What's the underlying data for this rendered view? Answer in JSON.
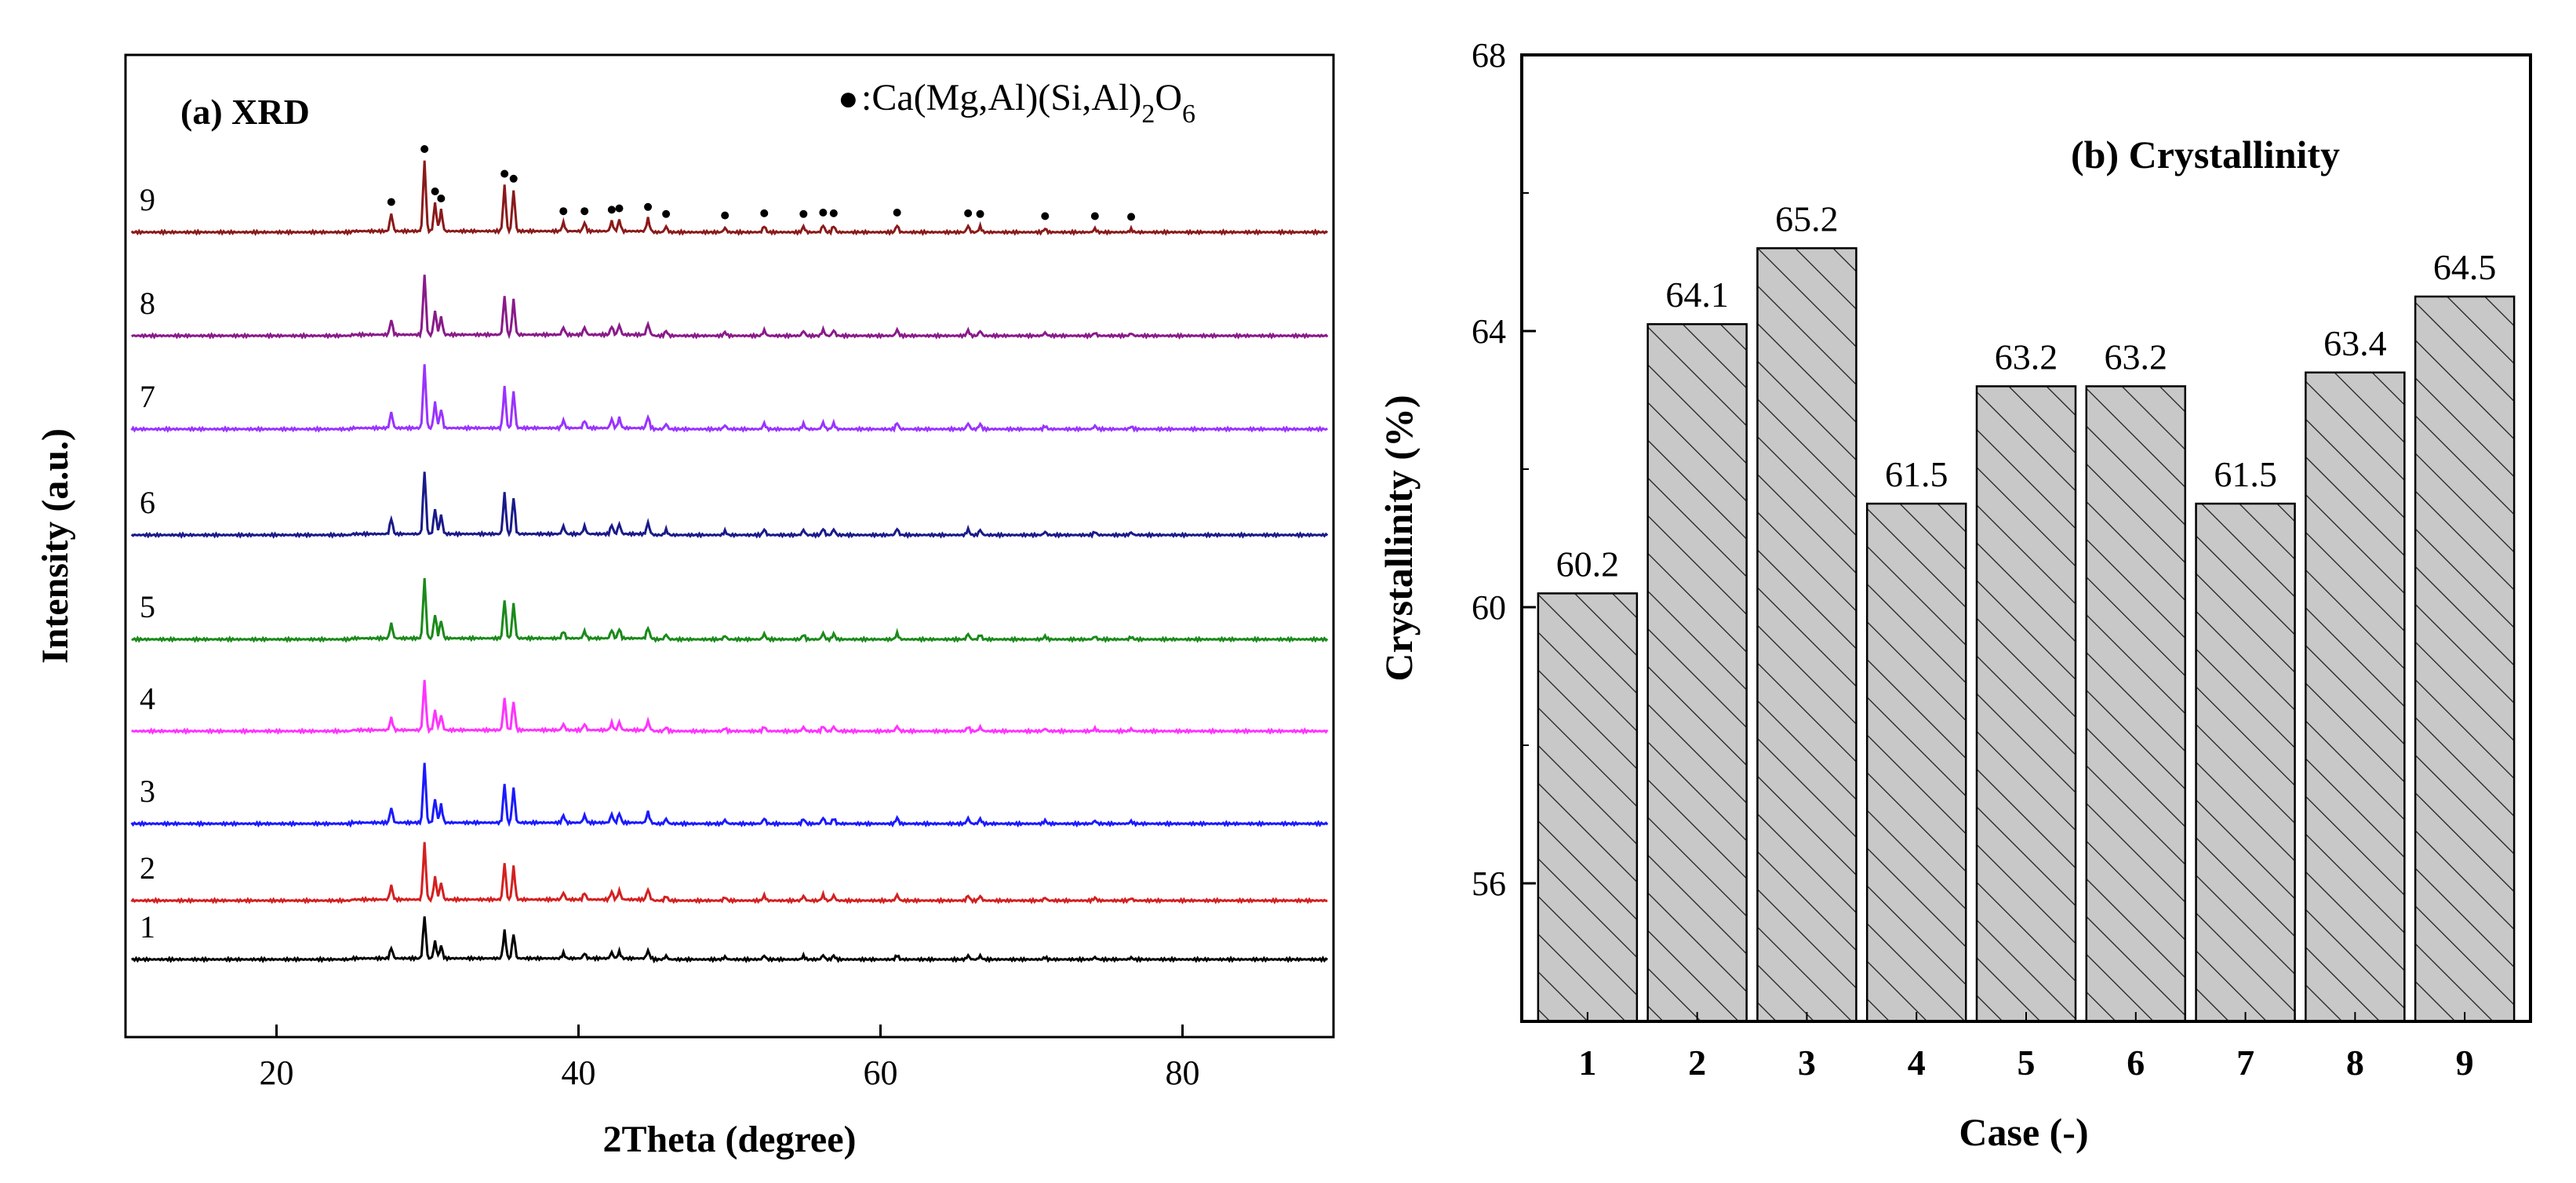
{
  "chart_data": [
    {
      "type": "line",
      "title": "(a) XRD",
      "xlabel": "2Theta (degree)",
      "ylabel": "Intensity (a.u.)",
      "xlim": [
        10,
        90
      ],
      "xticks": [
        20,
        40,
        60,
        80
      ],
      "legend": {
        "marker": "●",
        "label_prefix": ":Ca(Mg,Al)(Si,Al)",
        "sub1": "2",
        "label_mid": "O",
        "sub2": "6"
      },
      "series": [
        {
          "name": "1",
          "color": "#000000"
        },
        {
          "name": "2",
          "color": "#d42020"
        },
        {
          "name": "3",
          "color": "#1a1aff"
        },
        {
          "name": "4",
          "color": "#ff33ff"
        },
        {
          "name": "5",
          "color": "#1a8a1a"
        },
        {
          "name": "6",
          "color": "#1a1a8a"
        },
        {
          "name": "7",
          "color": "#9933ff"
        },
        {
          "name": "8",
          "color": "#8a1a8a"
        },
        {
          "name": "9",
          "color": "#8a1a1a"
        }
      ],
      "peaks": [
        {
          "x": 27.6,
          "h": 0.25
        },
        {
          "x": 29.8,
          "h": 1.0
        },
        {
          "x": 30.5,
          "h": 0.4
        },
        {
          "x": 30.9,
          "h": 0.3
        },
        {
          "x": 35.1,
          "h": 0.65
        },
        {
          "x": 35.7,
          "h": 0.58
        },
        {
          "x": 39.0,
          "h": 0.12
        },
        {
          "x": 40.4,
          "h": 0.12
        },
        {
          "x": 42.2,
          "h": 0.14
        },
        {
          "x": 42.7,
          "h": 0.16
        },
        {
          "x": 44.6,
          "h": 0.18
        },
        {
          "x": 45.8,
          "h": 0.08
        },
        {
          "x": 49.7,
          "h": 0.06
        },
        {
          "x": 52.3,
          "h": 0.09
        },
        {
          "x": 54.9,
          "h": 0.08
        },
        {
          "x": 56.2,
          "h": 0.1
        },
        {
          "x": 56.9,
          "h": 0.09
        },
        {
          "x": 61.1,
          "h": 0.1
        },
        {
          "x": 65.8,
          "h": 0.09
        },
        {
          "x": 66.6,
          "h": 0.08
        },
        {
          "x": 70.9,
          "h": 0.05
        },
        {
          "x": 74.2,
          "h": 0.05
        },
        {
          "x": 76.6,
          "h": 0.04
        }
      ],
      "marker_positions": [
        27.6,
        29.8,
        30.5,
        30.9,
        35.1,
        35.7,
        39.0,
        40.4,
        42.2,
        42.7,
        44.6,
        45.8,
        49.7,
        52.3,
        54.9,
        56.2,
        56.9,
        61.1,
        65.8,
        66.6,
        70.9,
        74.2,
        76.6
      ]
    },
    {
      "type": "bar",
      "title": "(b) Crystallinity",
      "xlabel": "Case (-)",
      "ylabel": "Crystallinity  (%)",
      "ylim": [
        54,
        68
      ],
      "yticks": [
        56,
        60,
        64,
        68
      ],
      "categories": [
        "1",
        "2",
        "3",
        "4",
        "5",
        "6",
        "7",
        "8",
        "9"
      ],
      "values": [
        60.2,
        64.1,
        65.2,
        61.5,
        63.2,
        63.2,
        61.5,
        63.4,
        64.5
      ],
      "value_labels": [
        "60.2",
        "64.1",
        "65.2",
        "61.5",
        "63.2",
        "63.2",
        "61.5",
        "63.4",
        "64.5"
      ],
      "fill": "#c8c8c8",
      "hatch": "diagonal"
    }
  ]
}
